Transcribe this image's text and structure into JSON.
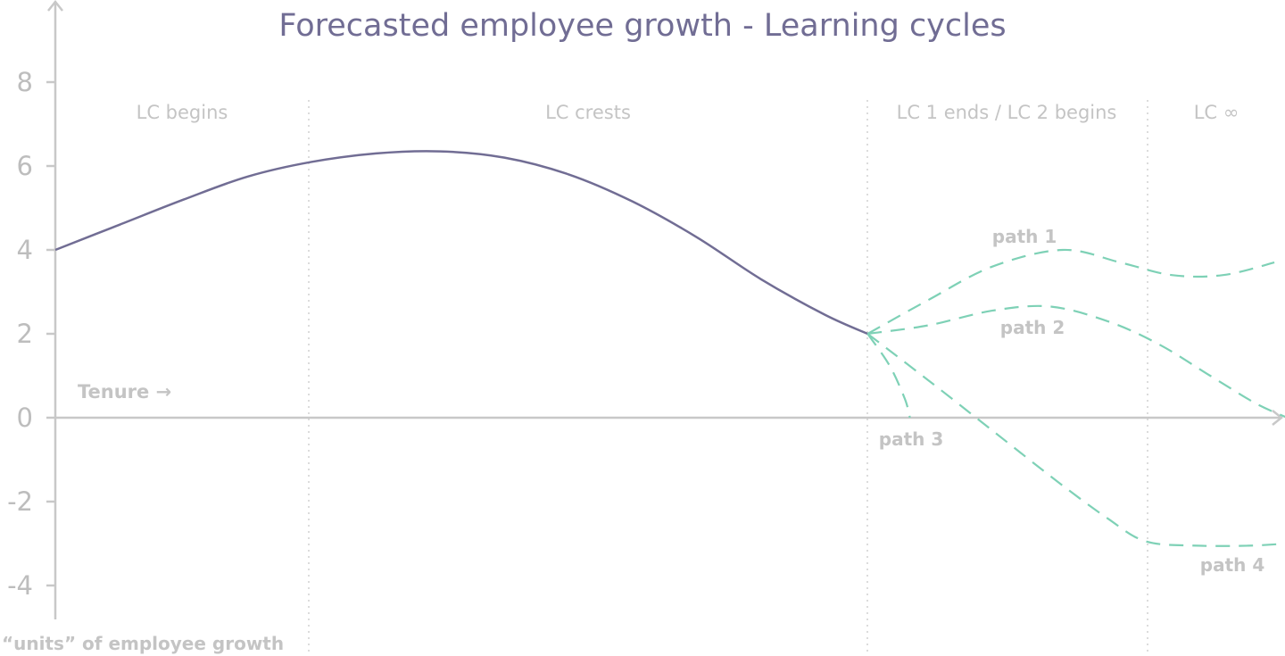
{
  "colors": {
    "main_line": "#716d94",
    "forecast_line": "#7ed1b6",
    "axis": "#c8c8c8",
    "divider": "#d0d0d0",
    "label": "#c4c4c4"
  },
  "chart_data": {
    "type": "line",
    "title": "Forecasted employee growth - Learning cycles",
    "ylabel": "“units” of employee growth",
    "x_annotation": "Tenure →",
    "ylim": [
      -4.9,
      10
    ],
    "y_ticks": [
      8,
      6,
      4,
      2,
      0,
      -2,
      -4
    ],
    "y_tick_labels": [
      "8",
      "6",
      "4",
      "2",
      "0",
      "-2",
      "-4"
    ],
    "grid": false,
    "phases": [
      {
        "label": "LC begins"
      },
      {
        "label": "LC crests"
      },
      {
        "label": "LC 1 ends / LC 2 begins"
      },
      {
        "label": "LC ∞"
      }
    ],
    "series": [
      {
        "style": "solid",
        "points": [
          [
            0,
            4.0
          ],
          [
            0.5,
            4.6
          ],
          [
            1.0,
            5.2
          ],
          [
            1.5,
            5.75
          ],
          [
            2.0,
            6.1
          ],
          [
            2.5,
            6.3
          ],
          [
            3.0,
            6.35
          ],
          [
            3.5,
            6.2
          ],
          [
            4.0,
            5.8
          ],
          [
            4.5,
            5.15
          ],
          [
            5.0,
            4.3
          ],
          [
            5.5,
            3.3
          ],
          [
            6.0,
            2.45
          ],
          [
            6.33,
            2.0
          ]
        ]
      },
      {
        "name": "path 1",
        "style": "dashed",
        "points": [
          [
            6.33,
            2.0
          ],
          [
            6.8,
            2.8
          ],
          [
            7.3,
            3.6
          ],
          [
            7.85,
            4.0
          ],
          [
            8.3,
            3.7
          ],
          [
            8.7,
            3.4
          ],
          [
            9.1,
            3.4
          ],
          [
            9.5,
            3.7
          ]
        ]
      },
      {
        "name": "path 2",
        "style": "dashed",
        "points": [
          [
            6.33,
            2.0
          ],
          [
            6.8,
            2.2
          ],
          [
            7.3,
            2.55
          ],
          [
            7.75,
            2.65
          ],
          [
            8.2,
            2.3
          ],
          [
            8.6,
            1.75
          ],
          [
            9.0,
            1.0
          ],
          [
            9.35,
            0.35
          ],
          [
            9.6,
            0.0
          ]
        ]
      },
      {
        "name": "path 3",
        "style": "dashed",
        "points": [
          [
            6.33,
            2.0
          ],
          [
            6.5,
            1.25
          ],
          [
            6.62,
            0.45
          ],
          [
            6.66,
            0.0
          ]
        ]
      },
      {
        "name": "path 4",
        "style": "dashed",
        "points": [
          [
            6.33,
            2.0
          ],
          [
            6.8,
            0.9
          ],
          [
            7.3,
            -0.3
          ],
          [
            7.8,
            -1.5
          ],
          [
            8.2,
            -2.4
          ],
          [
            8.5,
            -2.95
          ],
          [
            8.9,
            -3.05
          ],
          [
            9.3,
            -3.05
          ],
          [
            9.6,
            -3.0
          ]
        ]
      }
    ]
  }
}
